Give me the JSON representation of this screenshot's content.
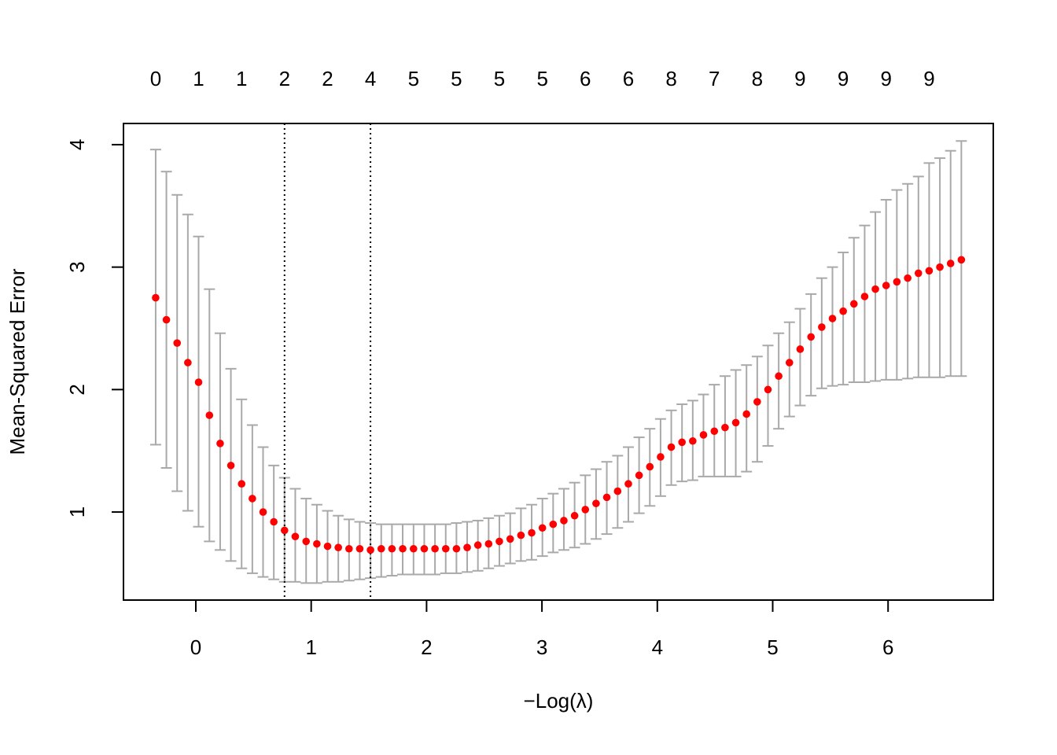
{
  "chart_data": {
    "type": "errorbar",
    "x_label": "−Log(λ)",
    "y_label": "Mean-Squared Error",
    "x": [
      -0.348,
      -0.255,
      -0.162,
      -0.069,
      0.024,
      0.118,
      0.211,
      0.304,
      0.397,
      0.49,
      0.583,
      0.676,
      0.769,
      0.862,
      0.956,
      1.049,
      1.142,
      1.235,
      1.328,
      1.421,
      1.514,
      1.607,
      1.7,
      1.793,
      1.887,
      1.98,
      2.073,
      2.166,
      2.259,
      2.352,
      2.445,
      2.538,
      2.631,
      2.725,
      2.818,
      2.911,
      3.004,
      3.097,
      3.19,
      3.283,
      3.376,
      3.469,
      3.562,
      3.656,
      3.749,
      3.842,
      3.935,
      4.028,
      4.121,
      4.214,
      4.307,
      4.4,
      4.494,
      4.587,
      4.68,
      4.773,
      4.866,
      4.959,
      5.052,
      5.145,
      5.238,
      5.332,
      5.425,
      5.518,
      5.611,
      5.704,
      5.797,
      5.89,
      5.983,
      6.076,
      6.17,
      6.263,
      6.356,
      6.449,
      6.542,
      6.635
    ],
    "values": [
      2.75,
      2.57,
      2.38,
      2.22,
      2.06,
      1.79,
      1.56,
      1.38,
      1.23,
      1.11,
      1.0,
      0.92,
      0.85,
      0.8,
      0.76,
      0.74,
      0.72,
      0.71,
      0.7,
      0.7,
      0.69,
      0.7,
      0.7,
      0.7,
      0.7,
      0.7,
      0.7,
      0.7,
      0.7,
      0.71,
      0.73,
      0.74,
      0.76,
      0.78,
      0.81,
      0.83,
      0.87,
      0.9,
      0.93,
      0.97,
      1.02,
      1.07,
      1.12,
      1.17,
      1.23,
      1.3,
      1.37,
      1.45,
      1.53,
      1.57,
      1.58,
      1.63,
      1.66,
      1.69,
      1.73,
      1.8,
      1.9,
      2.0,
      2.11,
      2.22,
      2.33,
      2.43,
      2.51,
      2.58,
      2.64,
      2.7,
      2.76,
      2.82,
      2.85,
      2.88,
      2.91,
      2.95,
      2.97,
      3.0,
      3.03,
      3.06
    ],
    "upper": [
      3.96,
      3.78,
      3.59,
      3.43,
      3.25,
      2.82,
      2.46,
      2.17,
      1.92,
      1.71,
      1.53,
      1.38,
      1.28,
      1.19,
      1.11,
      1.06,
      1.01,
      0.97,
      0.94,
      0.92,
      0.91,
      0.9,
      0.9,
      0.9,
      0.9,
      0.9,
      0.9,
      0.9,
      0.91,
      0.92,
      0.93,
      0.95,
      0.97,
      0.99,
      1.03,
      1.06,
      1.11,
      1.15,
      1.19,
      1.24,
      1.3,
      1.35,
      1.41,
      1.46,
      1.53,
      1.61,
      1.68,
      1.76,
      1.83,
      1.88,
      1.91,
      1.96,
      2.04,
      2.11,
      2.16,
      2.2,
      2.27,
      2.36,
      2.46,
      2.55,
      2.66,
      2.78,
      2.91,
      3.0,
      3.12,
      3.24,
      3.34,
      3.45,
      3.55,
      3.63,
      3.68,
      3.74,
      3.85,
      3.89,
      3.95,
      4.03
    ],
    "lower": [
      1.55,
      1.36,
      1.17,
      1.01,
      0.88,
      0.76,
      0.69,
      0.6,
      0.54,
      0.5,
      0.47,
      0.45,
      0.43,
      0.43,
      0.42,
      0.42,
      0.43,
      0.43,
      0.44,
      0.45,
      0.46,
      0.47,
      0.48,
      0.49,
      0.49,
      0.49,
      0.49,
      0.5,
      0.5,
      0.51,
      0.52,
      0.54,
      0.56,
      0.58,
      0.6,
      0.61,
      0.64,
      0.67,
      0.69,
      0.71,
      0.74,
      0.78,
      0.82,
      0.87,
      0.92,
      0.99,
      1.05,
      1.13,
      1.22,
      1.25,
      1.26,
      1.29,
      1.29,
      1.29,
      1.29,
      1.33,
      1.41,
      1.54,
      1.68,
      1.78,
      1.87,
      1.95,
      2.01,
      2.03,
      2.04,
      2.06,
      2.06,
      2.07,
      2.08,
      2.08,
      2.09,
      2.1,
      2.1,
      2.1,
      2.11,
      2.11
    ],
    "color": "#ff0000",
    "error_color": "#a9a9a9",
    "vlines": [
      0.769,
      1.514
    ],
    "top_ticks": [
      -0.348,
      0.024,
      0.397,
      0.769,
      1.142,
      1.514,
      1.887,
      2.259,
      2.631,
      3.004,
      3.376,
      3.749,
      4.121,
      4.494,
      4.866,
      5.238,
      5.611,
      5.983,
      6.356
    ],
    "top_labels": [
      0,
      1,
      1,
      2,
      2,
      4,
      5,
      5,
      5,
      5,
      6,
      6,
      8,
      7,
      8,
      9,
      9,
      9,
      9
    ],
    "xlim": [
      -0.627,
      6.912
    ],
    "ylim": [
      0.281,
      4.173
    ],
    "xticks": [
      0,
      1,
      2,
      3,
      4,
      5,
      6
    ],
    "yticks": [
      1,
      2,
      3,
      4
    ]
  }
}
